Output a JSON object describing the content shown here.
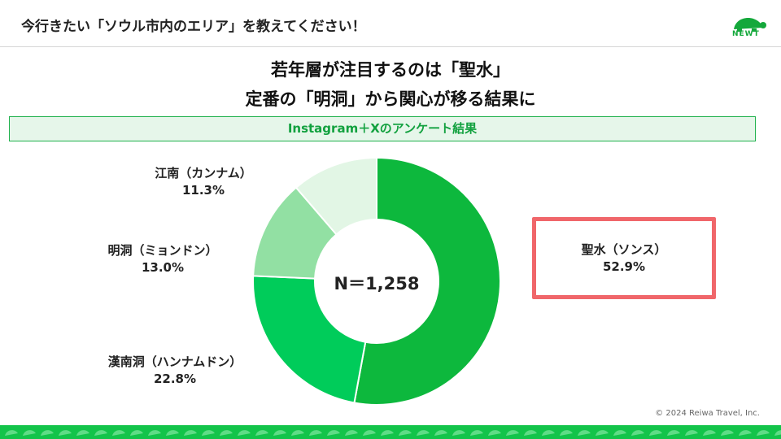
{
  "header": {
    "title": "今行きたい「ソウル市内のエリア」を教えてください！",
    "logo_text": "NEWT"
  },
  "headline": {
    "line1": "若年層が注目するのは「聖水」",
    "line2": "定番の「明洞」から関心が移る結果に"
  },
  "subtitle": "Instagram＋Xのアンケート結果",
  "center_label": "N＝1,258",
  "highlight": {
    "name": "聖水（ソンス）",
    "value": "52.9%"
  },
  "chart_data": {
    "type": "pie",
    "variant": "donut",
    "total_label": "N＝1,258",
    "categories": [
      "聖水（ソンス）",
      "漢南洞（ハンナムドン）",
      "明洞（ミョンドン）",
      "江南（カンナム）"
    ],
    "values": [
      52.9,
      22.8,
      13.0,
      11.3
    ],
    "value_labels": [
      "52.9%",
      "22.8%",
      "13.0%",
      "11.3%"
    ],
    "colors": [
      "#0db83d",
      "#00cc5a",
      "#92e0a3",
      "#e2f6e5"
    ]
  },
  "labels": {
    "gangnam": {
      "name": "江南（カンナム）",
      "value": "11.3%"
    },
    "myeongdong": {
      "name": "明洞（ミョンドン）",
      "value": "13.0%"
    },
    "hannam": {
      "name": "漢南洞（ハンナムドン）",
      "value": "22.8%"
    }
  },
  "copyright": "© 2024 Reiwa Travel, Inc.",
  "colors": {
    "brand_green": "#14a83b",
    "highlight_red": "#f0666a",
    "footer_green": "#13c44a"
  }
}
